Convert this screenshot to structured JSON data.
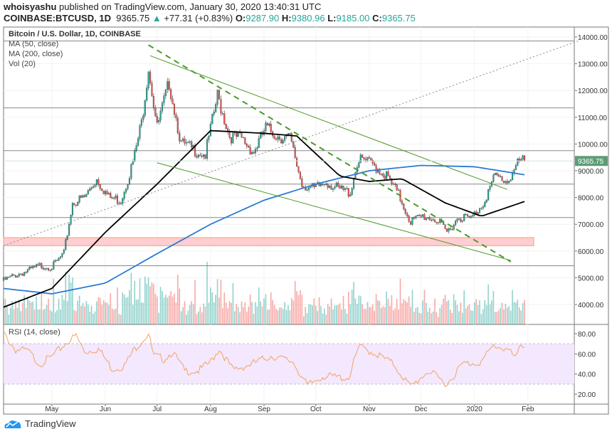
{
  "header": {
    "author": "whoisyashu",
    "published": "published on TradingView.com, January 30, 2020 13:40:31 UTC",
    "symbol": "COINBASE:BTCUSD, 1D",
    "last": "9365.75",
    "change": "+77.31 (+0.83%)",
    "o_label": "O:",
    "o": "9287.90",
    "h_label": "H:",
    "h": "9380.96",
    "l_label": "L:",
    "l": "9185.00",
    "c_label": "C:",
    "c": "9365.75"
  },
  "legend": {
    "title": "Bitcoin / U.S. Dollar, 1D, COINBASE",
    "ma50": "MA (50, close)",
    "ma200": "MA (200, close)",
    "vol": "Vol (20)",
    "rsi": "RSI (14, close)"
  },
  "footer": {
    "brand": "TradingView"
  },
  "colors": {
    "up": "#26a69a",
    "down": "#ef5350",
    "ma50": "#000000",
    "ma200": "#2a7bd9",
    "rsi": "#f4a261",
    "rsi_band": "#f3e8fd",
    "zone": "#ffcdd2",
    "trend": "#4c9a2a",
    "price_label": "#5e9c76"
  },
  "chart_data": {
    "type": "candlestick",
    "price_axis": {
      "ticks": [
        "14000.00",
        "13000.00",
        "12000.00",
        "11000.00",
        "10000.00",
        "9000.00",
        "8000.00",
        "7000.00",
        "6000.00",
        "5000.00",
        "4000.00"
      ],
      "ylim": [
        3450,
        14000
      ]
    },
    "rsi_axis": {
      "ticks": [
        "80.00",
        "60.00",
        "40.00",
        "20.00"
      ],
      "band": [
        30,
        70
      ]
    },
    "x_ticks": [
      {
        "label": "May",
        "date": "2019-05-01"
      },
      {
        "label": "Jun",
        "date": "2019-06-01"
      },
      {
        "label": "Jul",
        "date": "2019-07-01"
      },
      {
        "label": "Aug",
        "date": "2019-08-01"
      },
      {
        "label": "Sep",
        "date": "2019-09-01"
      },
      {
        "label": "Oct",
        "date": "2019-10-01"
      },
      {
        "label": "Nov",
        "date": "2019-11-01"
      },
      {
        "label": "Dec",
        "date": "2019-12-01"
      },
      {
        "label": "2020",
        "date": "2020-01-01"
      },
      {
        "label": "Feb",
        "date": "2020-02-01"
      }
    ],
    "last_price_label": "9365.75",
    "closes": [
      [
        "2019-04-03",
        4900
      ],
      [
        "2019-04-10",
        5100
      ],
      [
        "2019-04-17",
        5250
      ],
      [
        "2019-04-24",
        5450
      ],
      [
        "2019-05-01",
        5400
      ],
      [
        "2019-05-08",
        5900
      ],
      [
        "2019-05-13",
        7800
      ],
      [
        "2019-05-20",
        8000
      ],
      [
        "2019-05-27",
        8700
      ],
      [
        "2019-06-03",
        8000
      ],
      [
        "2019-06-10",
        7900
      ],
      [
        "2019-06-17",
        9300
      ],
      [
        "2019-06-22",
        10800
      ],
      [
        "2019-06-26",
        12900
      ],
      [
        "2019-07-01",
        10600
      ],
      [
        "2019-07-08",
        12300
      ],
      [
        "2019-07-15",
        10000
      ],
      [
        "2019-07-22",
        9800
      ],
      [
        "2019-07-29",
        9600
      ],
      [
        "2019-08-05",
        11800
      ],
      [
        "2019-08-12",
        10300
      ],
      [
        "2019-08-19",
        10200
      ],
      [
        "2019-08-26",
        9700
      ],
      [
        "2019-09-02",
        10600
      ],
      [
        "2019-09-09",
        10300
      ],
      [
        "2019-09-16",
        10200
      ],
      [
        "2019-09-23",
        8500
      ],
      [
        "2019-09-30",
        8300
      ],
      [
        "2019-10-07",
        8600
      ],
      [
        "2019-10-14",
        8300
      ],
      [
        "2019-10-21",
        8200
      ],
      [
        "2019-10-25",
        9300
      ],
      [
        "2019-10-28",
        9400
      ],
      [
        "2019-11-04",
        9200
      ],
      [
        "2019-11-11",
        8800
      ],
      [
        "2019-11-18",
        8100
      ],
      [
        "2019-11-25",
        7100
      ],
      [
        "2019-12-02",
        7300
      ],
      [
        "2019-12-09",
        7200
      ],
      [
        "2019-12-16",
        6700
      ],
      [
        "2019-12-23",
        7300
      ],
      [
        "2019-12-30",
        7200
      ],
      [
        "2020-01-06",
        7800
      ],
      [
        "2020-01-13",
        8800
      ],
      [
        "2020-01-20",
        8600
      ],
      [
        "2020-01-27",
        9350
      ],
      [
        "2020-01-30",
        9365.75
      ]
    ],
    "ma50": [
      [
        "2019-04-03",
        3900
      ],
      [
        "2019-05-01",
        4600
      ],
      [
        "2019-06-01",
        6700
      ],
      [
        "2019-07-01",
        8500
      ],
      [
        "2019-08-01",
        10500
      ],
      [
        "2019-09-01",
        10400
      ],
      [
        "2019-09-20",
        10300
      ],
      [
        "2019-10-15",
        8800
      ],
      [
        "2019-11-01",
        8600
      ],
      [
        "2019-11-20",
        8700
      ],
      [
        "2019-12-15",
        7800
      ],
      [
        "2020-01-05",
        7300
      ],
      [
        "2020-01-30",
        7850
      ]
    ],
    "ma200": [
      [
        "2019-04-03",
        4600
      ],
      [
        "2019-05-01",
        4400
      ],
      [
        "2019-06-01",
        4800
      ],
      [
        "2019-07-01",
        5900
      ],
      [
        "2019-08-01",
        7000
      ],
      [
        "2019-09-01",
        7900
      ],
      [
        "2019-10-01",
        8500
      ],
      [
        "2019-11-01",
        9000
      ],
      [
        "2019-12-01",
        9200
      ],
      [
        "2020-01-01",
        9150
      ],
      [
        "2020-01-30",
        8850
      ]
    ],
    "rsi": [
      [
        "2019-04-03",
        80
      ],
      [
        "2019-04-10",
        64
      ],
      [
        "2019-04-17",
        63
      ],
      [
        "2019-04-24",
        50
      ],
      [
        "2019-05-01",
        57
      ],
      [
        "2019-05-10",
        72
      ],
      [
        "2019-05-15",
        78
      ],
      [
        "2019-05-20",
        62
      ],
      [
        "2019-05-28",
        65
      ],
      [
        "2019-06-05",
        45
      ],
      [
        "2019-06-12",
        48
      ],
      [
        "2019-06-18",
        65
      ],
      [
        "2019-06-26",
        80
      ],
      [
        "2019-06-29",
        58
      ],
      [
        "2019-07-05",
        55
      ],
      [
        "2019-07-10",
        62
      ],
      [
        "2019-07-17",
        43
      ],
      [
        "2019-07-25",
        43
      ],
      [
        "2019-08-01",
        52
      ],
      [
        "2019-08-06",
        65
      ],
      [
        "2019-08-14",
        44
      ],
      [
        "2019-08-25",
        50
      ],
      [
        "2019-09-05",
        58
      ],
      [
        "2019-09-18",
        52
      ],
      [
        "2019-09-26",
        28
      ],
      [
        "2019-10-05",
        38
      ],
      [
        "2019-10-20",
        36
      ],
      [
        "2019-10-26",
        67
      ],
      [
        "2019-11-05",
        60
      ],
      [
        "2019-11-15",
        50
      ],
      [
        "2019-11-25",
        27
      ],
      [
        "2019-12-05",
        43
      ],
      [
        "2019-12-16",
        30
      ],
      [
        "2019-12-25",
        50
      ],
      [
        "2020-01-05",
        52
      ],
      [
        "2020-01-12",
        68
      ],
      [
        "2020-01-20",
        65
      ],
      [
        "2020-01-25",
        55
      ],
      [
        "2020-01-28",
        70
      ],
      [
        "2020-01-30",
        69
      ]
    ],
    "horizontal_levels": [
      13850,
      11350,
      9750,
      8500,
      7250,
      5450
    ],
    "zone": [
      6200,
      6500
    ],
    "trendlines": [
      {
        "style": "dashed",
        "from": [
          "2019-06-26",
          13700
        ],
        "to": [
          "2020-01-22",
          5600
        ]
      },
      {
        "style": "solid",
        "from": [
          "2019-06-27",
          13300
        ],
        "to": [
          "2020-01-20",
          8300
        ]
      },
      {
        "style": "solid",
        "from": [
          "2019-07-01",
          9300
        ],
        "to": [
          "2020-01-22",
          5650
        ]
      },
      {
        "style": "dotted",
        "from": [
          "2019-04-03",
          6200
        ],
        "to": [
          "2020-03-01",
          13850
        ]
      }
    ]
  }
}
